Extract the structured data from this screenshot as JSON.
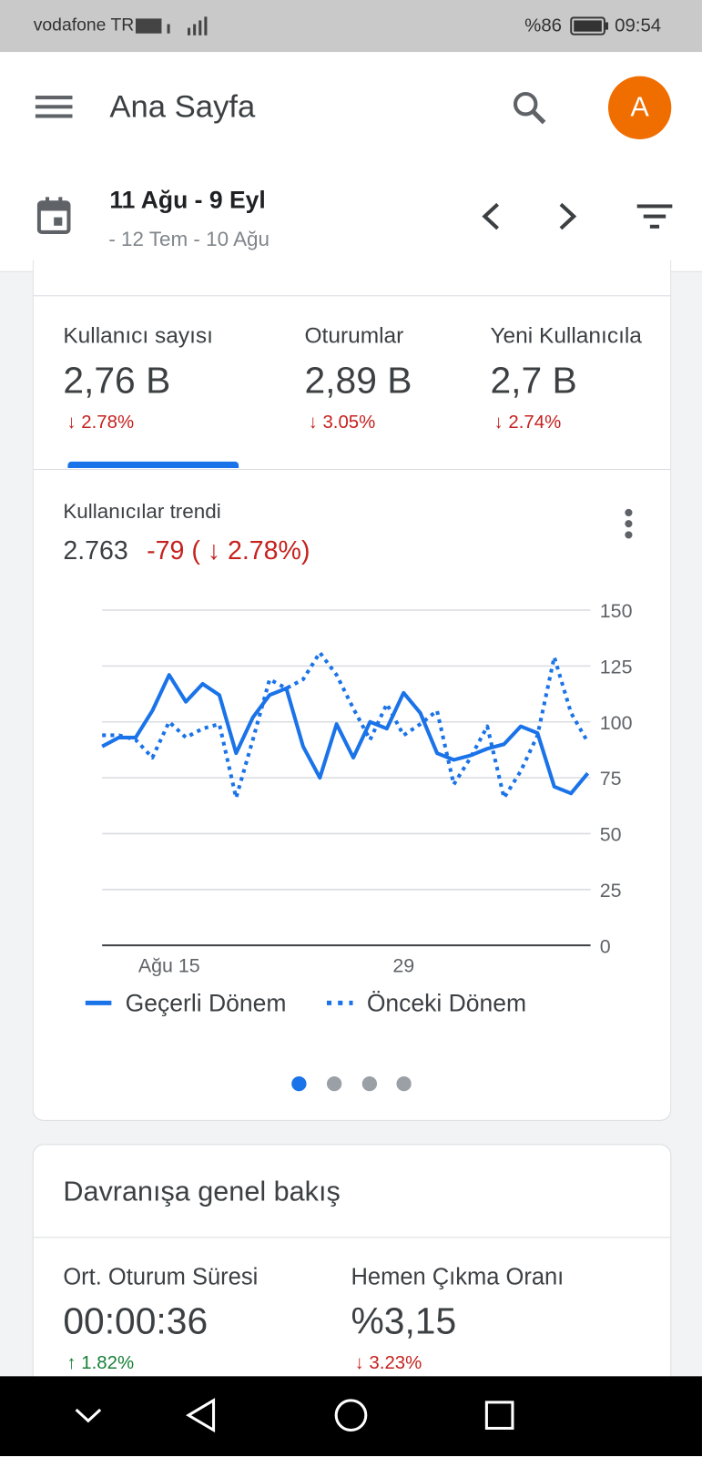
{
  "status_bar": {
    "carrier": "vodafone TR",
    "battery": "%86",
    "time": "09:54"
  },
  "app_bar": {
    "title": "Ana Sayfa",
    "avatar": "A"
  },
  "date_range": {
    "current": "11 Ağu - 9 Eyl",
    "previous": "- 12 Tem - 10 Ağu"
  },
  "metrics": [
    {
      "label": "Kullanıcı sayısı",
      "value": "2,76 B",
      "change": "↓ 2.78%"
    },
    {
      "label": "Oturumlar",
      "value": "2,89 B",
      "change": "↓ 3.05%"
    },
    {
      "label": "Yeni Kullanıcıla",
      "value": "2,7 B",
      "change": "↓ 2.74%"
    }
  ],
  "trend": {
    "title": "Kullanıcılar trendi",
    "total": "2.763",
    "delta": "-79 ( ↓ 2.78%)"
  },
  "chart_data": {
    "type": "line",
    "categories": [
      null,
      null,
      null,
      null,
      "Ağu 15",
      null,
      null,
      null,
      null,
      null,
      null,
      null,
      null,
      null,
      null,
      null,
      null,
      null,
      "29",
      null,
      null,
      null,
      null,
      null,
      null,
      null,
      null,
      null,
      null,
      null
    ],
    "series": [
      {
        "name": "Geçerli Dönem",
        "color": "#1a73e8",
        "style": "solid",
        "values": [
          89,
          93,
          93,
          105,
          121,
          109,
          117,
          112,
          86,
          102,
          112,
          115,
          89,
          75,
          99,
          84,
          100,
          97,
          113,
          104,
          86,
          83,
          85,
          88,
          90,
          98,
          95,
          71,
          68,
          77
        ]
      },
      {
        "name": "Önceki Dönem",
        "color": "#1a73e8",
        "style": "dotted",
        "values": [
          94,
          94,
          92,
          84,
          100,
          93,
          97,
          99,
          66,
          92,
          119,
          115,
          119,
          131,
          121,
          106,
          92,
          108,
          94,
          99,
          105,
          72,
          84,
          98,
          66,
          78,
          94,
          129,
          104,
          91
        ]
      }
    ],
    "ylim": [
      0,
      150
    ],
    "yticks": [
      0,
      25,
      50,
      75,
      100,
      125,
      150
    ],
    "grid": true,
    "y_axis_side": "right",
    "legend": "bottom"
  },
  "behavior": {
    "title": "Davranışa genel bakış",
    "metrics": [
      {
        "label": "Ort. Oturum Süresi",
        "value": "00:00:36",
        "change": "↑ 1.82%",
        "trend": "up"
      },
      {
        "label": "Hemen Çıkma Oranı",
        "value": "%3,15",
        "change": "↓ 3.23%",
        "trend": "down"
      }
    ]
  }
}
